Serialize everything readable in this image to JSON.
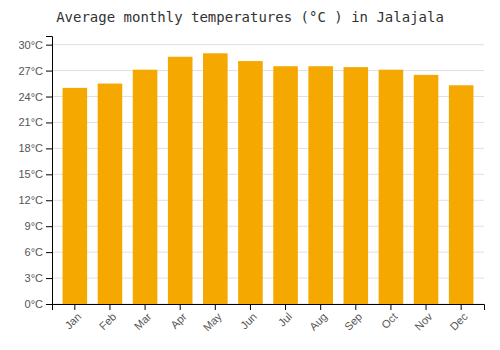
{
  "chart_data": {
    "type": "bar",
    "title": "Average monthly temperatures (°C ) in Jalajala",
    "categories": [
      "Jan",
      "Feb",
      "Mar",
      "Apr",
      "May",
      "Jun",
      "Jul",
      "Aug",
      "Sep",
      "Oct",
      "Nov",
      "Dec"
    ],
    "values": [
      25.0,
      25.5,
      27.1,
      28.6,
      29.0,
      28.1,
      27.5,
      27.5,
      27.4,
      27.1,
      26.5,
      25.3
    ],
    "color": "#F5A800",
    "ylim": [
      0,
      31
    ],
    "yticks": [
      {
        "value": 0,
        "label": "0°C"
      },
      {
        "value": 3,
        "label": "3°C"
      },
      {
        "value": 6,
        "label": "6°C"
      },
      {
        "value": 9,
        "label": "9°C"
      },
      {
        "value": 12,
        "label": "12°C"
      },
      {
        "value": 15,
        "label": "15°C"
      },
      {
        "value": 18,
        "label": "18°C"
      },
      {
        "value": 21,
        "label": "21°C"
      },
      {
        "value": 24,
        "label": "24°C"
      },
      {
        "value": 27,
        "label": "27°C"
      },
      {
        "value": 30,
        "label": "30°C"
      }
    ],
    "grid": true
  }
}
